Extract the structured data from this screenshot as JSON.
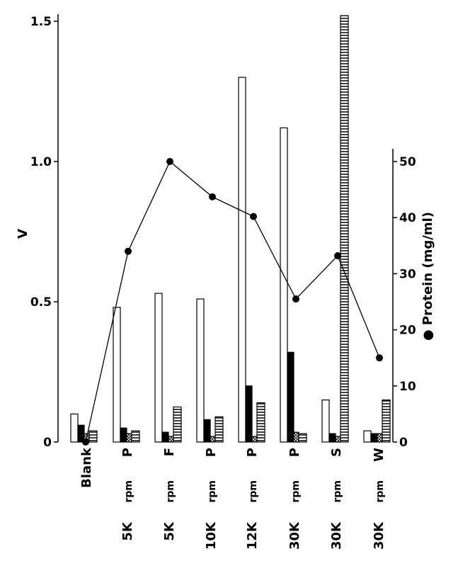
{
  "chart_data": {
    "type": "bar",
    "categories": [
      {
        "speed": "",
        "unit": "",
        "fraction": "Blank"
      },
      {
        "speed": "5K",
        "unit": "rpm",
        "fraction": "P"
      },
      {
        "speed": "5K",
        "unit": "rpm",
        "fraction": "F"
      },
      {
        "speed": "10K",
        "unit": "rpm",
        "fraction": "P"
      },
      {
        "speed": "12K",
        "unit": "rpm",
        "fraction": "P"
      },
      {
        "speed": "30K",
        "unit": "rpm",
        "fraction": "P"
      },
      {
        "speed": "30K",
        "unit": "rpm",
        "fraction": "S"
      },
      {
        "speed": "30K",
        "unit": "rpm",
        "fraction": "W"
      }
    ],
    "series": [
      {
        "style": "open",
        "values": [
          0.1,
          0.48,
          0.53,
          0.51,
          1.3,
          1.12,
          0.15,
          0.04
        ]
      },
      {
        "style": "solid",
        "values": [
          0.06,
          0.05,
          0.035,
          0.08,
          0.2,
          0.32,
          0.03,
          0.03
        ]
      },
      {
        "style": "crosshatch",
        "values": [
          0.03,
          0.03,
          0.02,
          0.02,
          0.02,
          0.035,
          0.02,
          0.03
        ]
      },
      {
        "style": "horizontal-hatch",
        "values": [
          0.04,
          0.04,
          0.125,
          0.09,
          0.14,
          0.03,
          1.52,
          0.15
        ]
      }
    ],
    "protein": {
      "name": "Protein (mg/ml)",
      "values": [
        0.0,
        34.0,
        50.0,
        43.7,
        40.2,
        25.5,
        33.2,
        15.0
      ]
    },
    "ylabel": "V",
    "ylim": [
      0,
      1.5
    ],
    "yticks": [
      "0",
      "0.5",
      "1.0",
      "1.5"
    ],
    "y2label": "Protein (mg/ml)",
    "y2lim": [
      0,
      50
    ],
    "y2ticks": [
      "0",
      "10",
      "20",
      "30",
      "40",
      "50"
    ],
    "grid": false
  }
}
